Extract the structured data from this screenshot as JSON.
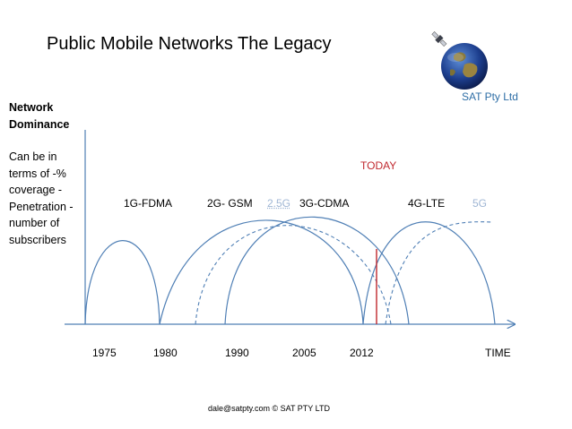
{
  "title": "Public Mobile Networks The Legacy",
  "company": "SAT Pty Ltd",
  "y_axis": {
    "heading_line1": "Network",
    "heading_line2": "Dominance",
    "note": "Can be in terms of -% coverage -Penetration -number of subscribers"
  },
  "today_label": "TODAY",
  "generations": [
    {
      "label": "1G-FDMA",
      "color": "#000000"
    },
    {
      "label": "2G- GSM",
      "color": "#000000"
    },
    {
      "label": "2.5G",
      "color": "#9fb6d4"
    },
    {
      "label": "3G-CDMA",
      "color": "#000000"
    },
    {
      "label": "4G-LTE",
      "color": "#000000"
    },
    {
      "label": "5G",
      "color": "#9fb6d4"
    }
  ],
  "years": [
    "1975",
    "1980",
    "1990",
    "2005",
    "2012"
  ],
  "x_axis_label": "TIME",
  "footer": "dale@satpty.com  © SAT PTY LTD",
  "colors": {
    "curve": "#4f7fb5",
    "today_line": "#c0282e",
    "today_text": "#c0282e",
    "company_text": "#2e6ea6",
    "axis": "#4f7fb5",
    "faded": "#9fb6d4"
  },
  "icons": [
    "satellite-globe-icon"
  ]
}
